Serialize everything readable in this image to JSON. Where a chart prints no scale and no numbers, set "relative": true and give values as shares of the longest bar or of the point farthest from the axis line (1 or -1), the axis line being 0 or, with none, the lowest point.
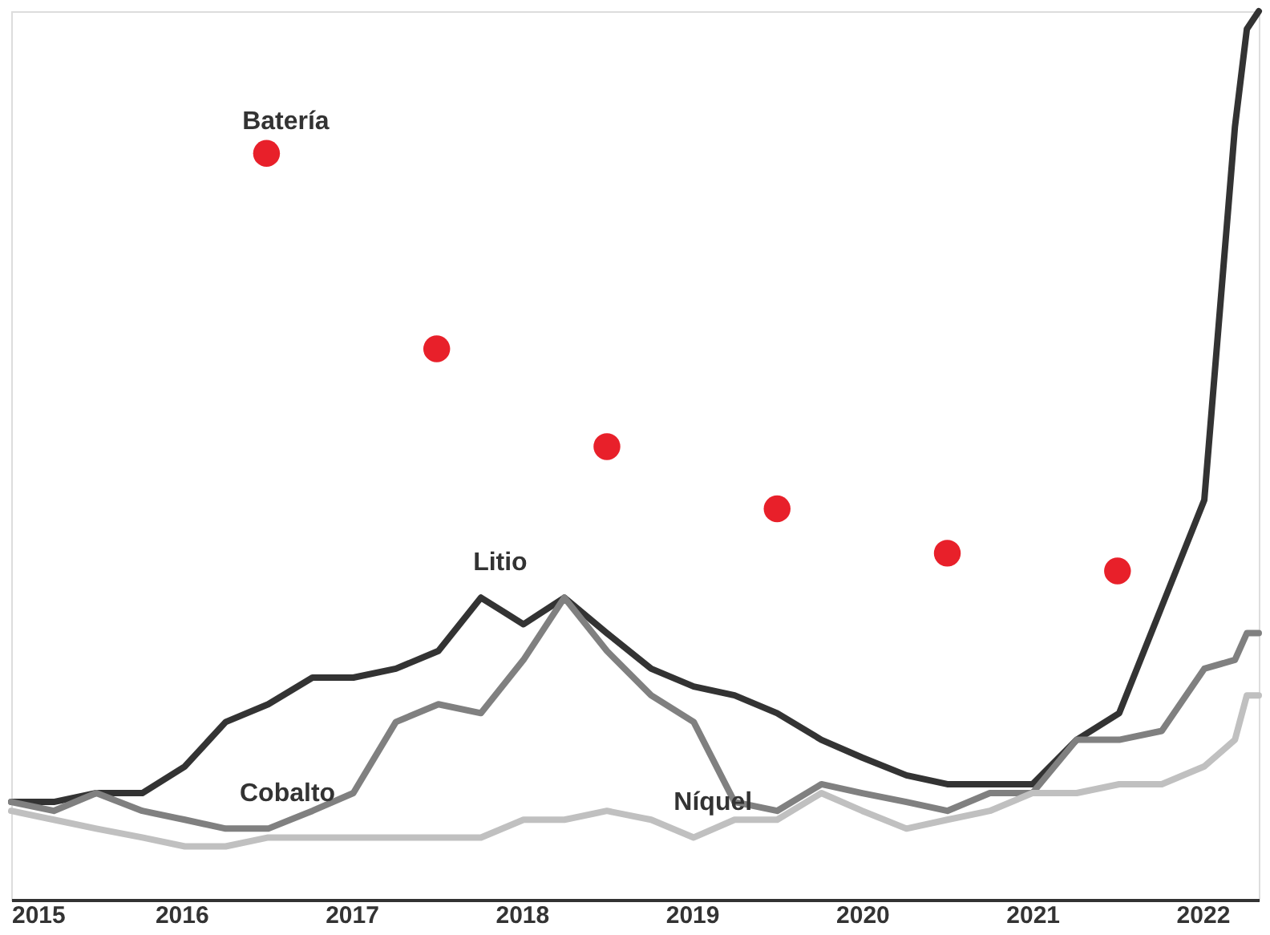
{
  "chart_data": {
    "type": "line",
    "relative": true,
    "xlim": [
      2015,
      2022.33
    ],
    "xticks": [
      2015,
      2016,
      2017,
      2018,
      2019,
      2020,
      2021,
      2022
    ],
    "legend": false,
    "grid": false,
    "x": [
      2015,
      2015.25,
      2015.5,
      2015.77,
      2016.02,
      2016.26,
      2016.51,
      2016.77,
      2017.01,
      2017.26,
      2017.51,
      2017.76,
      2018.01,
      2018.25,
      2018.5,
      2018.76,
      2019.01,
      2019.25,
      2019.5,
      2019.76,
      2020,
      2020.26,
      2020.5,
      2020.75,
      2021,
      2021.26,
      2021.51,
      2021.76,
      2022.01,
      2022.19,
      2022.26,
      2022.33
    ],
    "series": [
      {
        "name": "Litio",
        "color": "#333333",
        "values": [
          0.11,
          0.11,
          0.12,
          0.12,
          0.15,
          0.2,
          0.22,
          0.25,
          0.25,
          0.26,
          0.28,
          0.34,
          0.31,
          0.34,
          0.3,
          0.26,
          0.24,
          0.23,
          0.21,
          0.18,
          0.16,
          0.14,
          0.13,
          0.13,
          0.13,
          0.18,
          0.21,
          0.33,
          0.45,
          0.87,
          0.98,
          1.0
        ]
      },
      {
        "name": "Cobalto",
        "color": "#808080",
        "values": [
          0.11,
          0.1,
          0.12,
          0.1,
          0.09,
          0.08,
          0.08,
          0.1,
          0.12,
          0.2,
          0.22,
          0.21,
          0.27,
          0.34,
          0.28,
          0.23,
          0.2,
          0.11,
          0.1,
          0.13,
          0.12,
          0.11,
          0.1,
          0.12,
          0.12,
          0.18,
          0.18,
          0.19,
          0.26,
          0.27,
          0.3,
          0.3
        ]
      },
      {
        "name": "Níquel",
        "color": "#c0c0c0",
        "values": [
          0.1,
          0.09,
          0.08,
          0.07,
          0.06,
          0.06,
          0.07,
          0.07,
          0.07,
          0.07,
          0.07,
          0.07,
          0.09,
          0.09,
          0.1,
          0.09,
          0.07,
          0.09,
          0.09,
          0.12,
          0.1,
          0.08,
          0.09,
          0.1,
          0.12,
          0.12,
          0.13,
          0.13,
          0.15,
          0.18,
          0.23,
          0.23
        ]
      },
      {
        "name": "Batería",
        "type": "scatter",
        "marker": "circle",
        "color": "#e8202a",
        "x": [
          2016.5,
          2017.5,
          2018.5,
          2019.5,
          2020.5,
          2021.5
        ],
        "values": [
          0.84,
          0.62,
          0.51,
          0.44,
          0.39,
          0.37
        ]
      }
    ]
  }
}
